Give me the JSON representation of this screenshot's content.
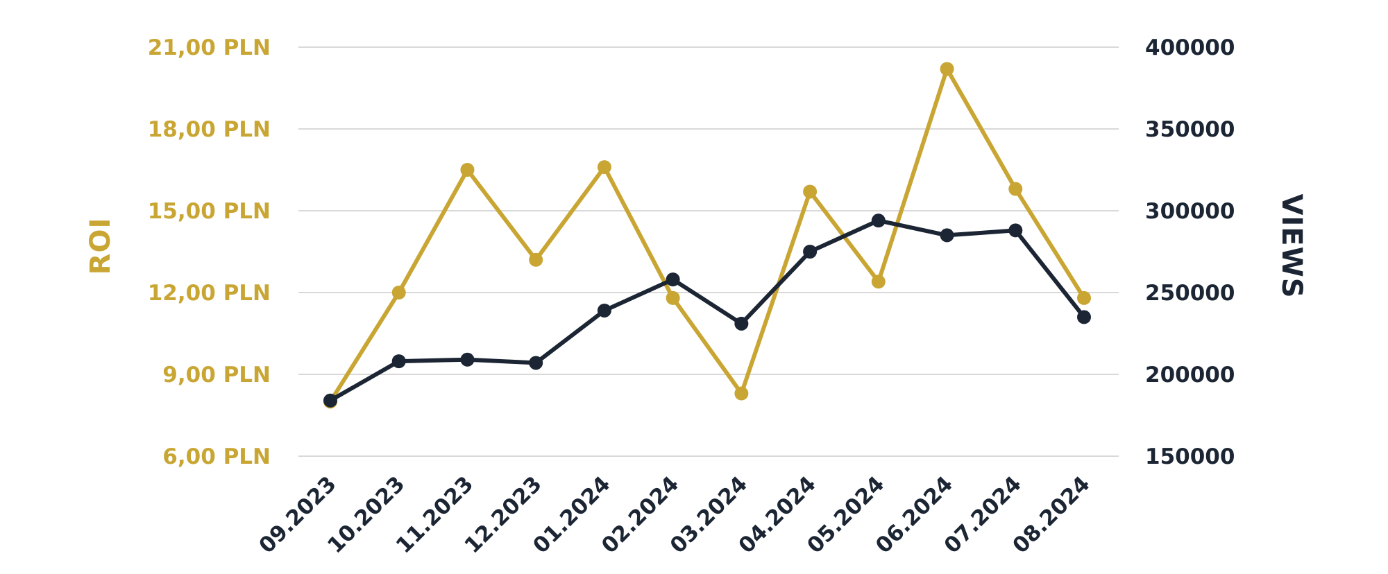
{
  "chart_data": {
    "type": "line",
    "title": "",
    "xlabel": "",
    "categories": [
      "09.2023",
      "10.2023",
      "11.2023",
      "12.2023",
      "01.2024",
      "02.2024",
      "03.2024",
      "04.2024",
      "05.2024",
      "06.2024",
      "07.2024",
      "08.2024"
    ],
    "y_left": {
      "label": "ROI",
      "ylim": [
        6,
        21
      ],
      "ticks": [
        6,
        9,
        12,
        15,
        18,
        21
      ],
      "tick_labels": [
        "6,00 PLN",
        "9,00 PLN",
        "12,00 PLN",
        "15,00 PLN",
        "18,00 PLN",
        "21,00 PLN"
      ]
    },
    "y_right": {
      "label": "VIEWS",
      "ylim": [
        150000,
        400000
      ],
      "ticks": [
        150000,
        200000,
        250000,
        300000,
        350000,
        400000
      ],
      "tick_labels": [
        "150000",
        "200000",
        "250000",
        "300000",
        "350000",
        "400000"
      ]
    },
    "series": [
      {
        "axis": "left",
        "color": "#c9a633",
        "values": [
          8.0,
          12.0,
          16.5,
          13.2,
          16.6,
          11.8,
          8.3,
          15.7,
          12.4,
          20.2,
          15.8,
          11.8
        ]
      },
      {
        "axis": "right",
        "color": "#1b2533",
        "values": [
          184000,
          208000,
          209000,
          207000,
          239000,
          258000,
          231000,
          275000,
          294000,
          285000,
          288000,
          235000
        ]
      }
    ],
    "grid": true
  },
  "colors": {
    "gold": "#c9a633",
    "navy": "#1b2533",
    "grid": "#d9d9d9"
  }
}
